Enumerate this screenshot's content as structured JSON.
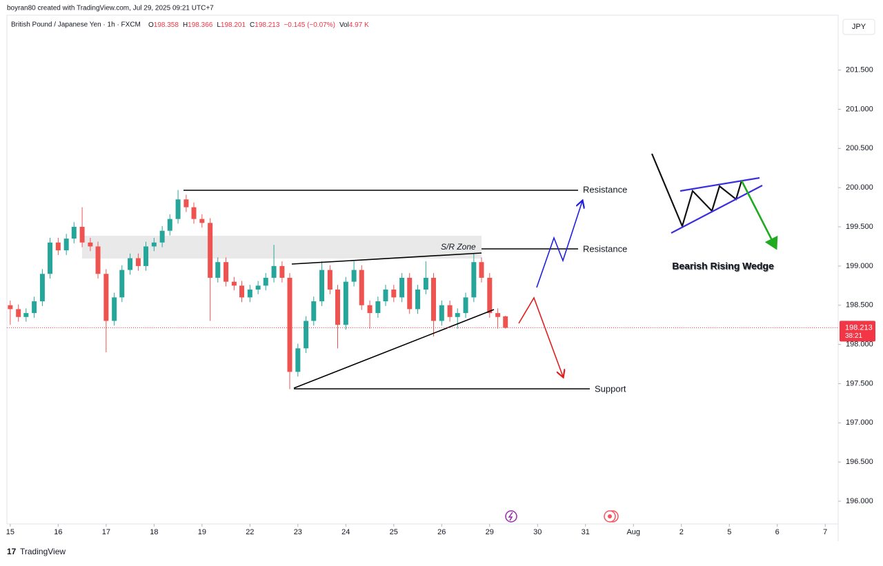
{
  "header": {
    "credit": "boyran80 created with TradingView.com, Jul 29, 2025 09:21 UTC+7",
    "symbol": "British Pound / Japanese Yen · 1h · FXCM",
    "legend": [
      {
        "key": "O",
        "text": "198.358"
      },
      {
        "key": "H",
        "text": "198.366"
      },
      {
        "key": "L",
        "text": "198.201"
      },
      {
        "key": "C",
        "text": "198.213"
      },
      {
        "key": "",
        "text": "−0.145 (−0.07%)"
      },
      {
        "key": "Vol",
        "text": "4.97 K"
      }
    ],
    "currency": "JPY",
    "countdown": "38:21",
    "brand": "TradingView"
  },
  "annotations": {
    "resistance_top": "Resistance",
    "resistance_mid": "Resistance",
    "support": "Support",
    "zone": "S/R Zone",
    "pattern": "Bearish Rising Wedge"
  },
  "chart_data": {
    "type": "candlestick",
    "up_color": "#26a69a",
    "down_color": "#ef5350",
    "x": [
      0,
      0.17,
      0.33,
      0.5,
      0.67,
      0.83,
      1,
      1.17,
      1.33,
      1.5,
      1.67,
      1.83,
      2,
      2.17,
      2.33,
      2.5,
      2.67,
      2.83,
      3,
      3.17,
      3.33,
      3.5,
      3.67,
      3.83,
      4,
      4.17,
      4.33,
      4.5,
      4.67,
      4.83,
      5,
      5.17,
      5.33,
      5.5,
      5.67,
      5.83,
      6,
      6.17,
      6.33,
      6.5,
      6.67,
      6.83,
      7,
      7.17,
      7.33,
      7.5,
      7.67,
      7.83,
      8,
      8.17,
      8.33,
      8.5,
      8.67,
      8.83,
      9,
      9.17,
      9.33,
      9.5,
      9.67,
      9.83,
      10,
      10.17,
      10.33
    ],
    "open": [
      198.5,
      198.45,
      198.35,
      198.4,
      198.55,
      198.9,
      199.3,
      199.2,
      199.35,
      199.5,
      199.3,
      199.25,
      198.9,
      198.3,
      198.6,
      198.95,
      199.1,
      199.0,
      199.25,
      199.3,
      199.45,
      199.6,
      199.85,
      199.75,
      199.6,
      199.55,
      198.85,
      199.05,
      198.8,
      198.75,
      198.6,
      198.7,
      198.75,
      198.85,
      199.0,
      198.85,
      197.65,
      197.95,
      198.3,
      198.55,
      198.95,
      198.7,
      198.25,
      198.8,
      198.95,
      198.5,
      198.4,
      198.55,
      198.7,
      198.6,
      198.85,
      198.45,
      198.7,
      198.85,
      198.3,
      198.5,
      198.35,
      198.4,
      198.6,
      199.05,
      198.85,
      198.4,
      198.358
    ],
    "high": [
      198.56,
      198.51,
      198.46,
      198.61,
      198.96,
      199.36,
      199.36,
      199.41,
      199.56,
      199.75,
      199.36,
      199.31,
      198.96,
      198.66,
      199.01,
      199.16,
      199.16,
      199.31,
      199.36,
      199.51,
      199.66,
      199.97,
      199.91,
      199.81,
      199.66,
      199.61,
      199.11,
      199.11,
      198.86,
      198.81,
      198.76,
      198.81,
      198.91,
      199.27,
      199.06,
      198.91,
      198.01,
      198.36,
      198.61,
      199.06,
      199.01,
      198.76,
      198.86,
      199.06,
      199.01,
      198.56,
      198.61,
      198.76,
      198.76,
      198.91,
      198.91,
      198.76,
      199.06,
      198.91,
      198.56,
      198.56,
      198.46,
      198.66,
      199.16,
      199.11,
      198.91,
      198.46,
      198.366
    ],
    "low": [
      198.25,
      198.29,
      198.29,
      198.34,
      198.49,
      198.84,
      199.14,
      199.14,
      199.29,
      199.24,
      199.19,
      198.84,
      197.9,
      198.24,
      198.54,
      198.89,
      198.94,
      198.94,
      199.19,
      199.24,
      199.39,
      199.54,
      199.69,
      199.54,
      199.49,
      198.3,
      198.79,
      198.74,
      198.69,
      198.54,
      198.54,
      198.64,
      198.69,
      198.79,
      198.79,
      197.43,
      197.59,
      197.89,
      198.24,
      198.49,
      198.64,
      197.95,
      198.19,
      198.74,
      198.44,
      198.2,
      198.34,
      198.49,
      198.54,
      198.54,
      198.39,
      198.39,
      198.64,
      198.1,
      198.24,
      198.29,
      198.2,
      198.34,
      198.54,
      198.79,
      198.34,
      198.2,
      198.201
    ],
    "close": [
      198.45,
      198.35,
      198.4,
      198.55,
      198.9,
      199.3,
      199.2,
      199.35,
      199.5,
      199.3,
      199.25,
      198.9,
      198.3,
      198.6,
      198.95,
      199.1,
      199.0,
      199.25,
      199.3,
      199.45,
      199.6,
      199.85,
      199.75,
      199.6,
      199.55,
      198.85,
      199.05,
      198.8,
      198.75,
      198.6,
      198.7,
      198.75,
      198.85,
      199.0,
      198.85,
      197.65,
      197.95,
      198.3,
      198.55,
      198.95,
      198.7,
      198.25,
      198.8,
      198.95,
      198.5,
      198.4,
      198.55,
      198.7,
      198.6,
      198.85,
      198.45,
      198.7,
      198.85,
      198.3,
      198.5,
      198.35,
      198.4,
      198.6,
      199.05,
      198.85,
      198.4,
      198.35,
      198.213
    ],
    "xlim": [
      -0.07,
      17.27
    ],
    "xticks": [
      {
        "value": 0,
        "label": "15"
      },
      {
        "value": 1,
        "label": "16"
      },
      {
        "value": 2,
        "label": "17"
      },
      {
        "value": 3,
        "label": "18"
      },
      {
        "value": 4,
        "label": "19"
      },
      {
        "value": 5,
        "label": "22"
      },
      {
        "value": 6,
        "label": "23"
      },
      {
        "value": 7,
        "label": "24"
      },
      {
        "value": 8,
        "label": "25"
      },
      {
        "value": 9,
        "label": "26"
      },
      {
        "value": 10,
        "label": "29"
      },
      {
        "value": 11,
        "label": "30"
      },
      {
        "value": 12,
        "label": "31"
      },
      {
        "value": 13,
        "label": "Aug"
      },
      {
        "value": 14,
        "label": "2"
      },
      {
        "value": 15,
        "label": "5"
      },
      {
        "value": 16,
        "label": "6"
      },
      {
        "value": 17,
        "label": "7"
      }
    ],
    "ylim": [
      195.71,
      202.2
    ],
    "yticks": [
      {
        "value": 196,
        "label": "196.000"
      },
      {
        "value": 196.5,
        "label": "196.500"
      },
      {
        "value": 197,
        "label": "197.000"
      },
      {
        "value": 197.5,
        "label": "197.500"
      },
      {
        "value": 198,
        "label": "198.000"
      },
      {
        "value": 198.5,
        "label": "198.500"
      },
      {
        "value": 199,
        "label": "199.000"
      },
      {
        "value": 199.5,
        "label": "199.500"
      },
      {
        "value": 200,
        "label": "200.000"
      },
      {
        "value": 200.5,
        "label": "200.500"
      },
      {
        "value": 201,
        "label": "201.000"
      },
      {
        "value": 201.5,
        "label": "201.500"
      }
    ]
  }
}
